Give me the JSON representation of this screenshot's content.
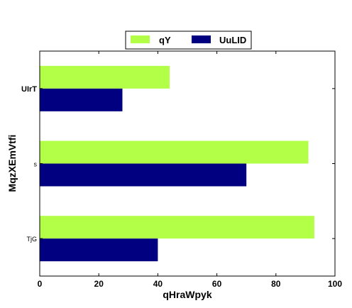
{
  "chart_data": {
    "type": "bar",
    "orientation": "horizontal",
    "categories": [
      "UIrT",
      "s",
      "TjG"
    ],
    "series": [
      {
        "name": "qY",
        "values": [
          44,
          91,
          93
        ],
        "color": "#b3ff47"
      },
      {
        "name": "UuLID",
        "values": [
          28,
          70,
          40
        ],
        "color": "#000080"
      }
    ],
    "xlabel": "qHraWpyk",
    "ylabel": "MqzXEmVtfi",
    "xlim": [
      0,
      100
    ],
    "xticks": [
      "0",
      "20",
      "40",
      "60",
      "80",
      "100"
    ],
    "grid": false,
    "legend_position": "top-center"
  }
}
